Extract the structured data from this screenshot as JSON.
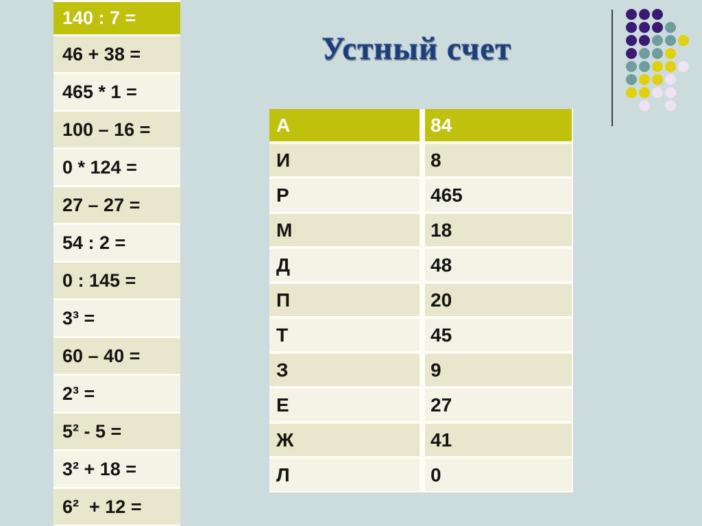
{
  "slide": {
    "title": "Устный счет"
  },
  "colors": {
    "bg": "#ccdbdb",
    "olive": "#bfc10d",
    "band-a": "#e8e7cb",
    "band-b": "#f4f4e6",
    "gap": "#fdfdf6",
    "title-blue": "#1e3e7b",
    "ink": "#141414",
    "header-text": "#ffffff",
    "line": "#3f3f3f"
  },
  "expressions": {
    "header": "140 : 7 =",
    "items": [
      "46 + 38 =",
      "465 * 1 =",
      "100 – 16 =",
      "0 * 124 =",
      "27 – 27 =",
      "54 : 2 =",
      "0 : 145 =",
      "3³ =",
      "60 – 40 =",
      "2³ =",
      "5² - 5 =",
      "3² + 18 =",
      "6²  + 12 ="
    ]
  },
  "answer_table": {
    "header": {
      "letter": "А",
      "value": "84"
    },
    "rows": [
      {
        "letter": "И",
        "value": "8"
      },
      {
        "letter": "Р",
        "value": "465"
      },
      {
        "letter": "М",
        "value": "18"
      },
      {
        "letter": "Д",
        "value": "48"
      },
      {
        "letter": "П",
        "value": "20"
      },
      {
        "letter": "Т",
        "value": "45"
      },
      {
        "letter": "З",
        "value": "9"
      },
      {
        "letter": "Е",
        "value": "27"
      },
      {
        "letter": "Ж",
        "value": "41"
      },
      {
        "letter": "Л",
        "value": "0"
      }
    ]
  },
  "decoration": {
    "dots": {
      "pitch": 19,
      "size": 16,
      "colors": {
        "p": "#3a1a72",
        "t": "#6f9c9c",
        "y": "#e2d00a",
        "l": "#eee3f5"
      },
      "grid": [
        [
          "p",
          "p",
          "p",
          null,
          null
        ],
        [
          "p",
          "p",
          "p",
          "t",
          null
        ],
        [
          "p",
          "p",
          "t",
          "t",
          "y"
        ],
        [
          "p",
          "t",
          "t",
          "y",
          null
        ],
        [
          "t",
          "t",
          "y",
          "y",
          "l"
        ],
        [
          "t",
          "y",
          "y",
          "l",
          null
        ],
        [
          "y",
          "y",
          "l",
          "l",
          null
        ],
        [
          null,
          "l",
          null,
          "l",
          null
        ]
      ]
    }
  }
}
